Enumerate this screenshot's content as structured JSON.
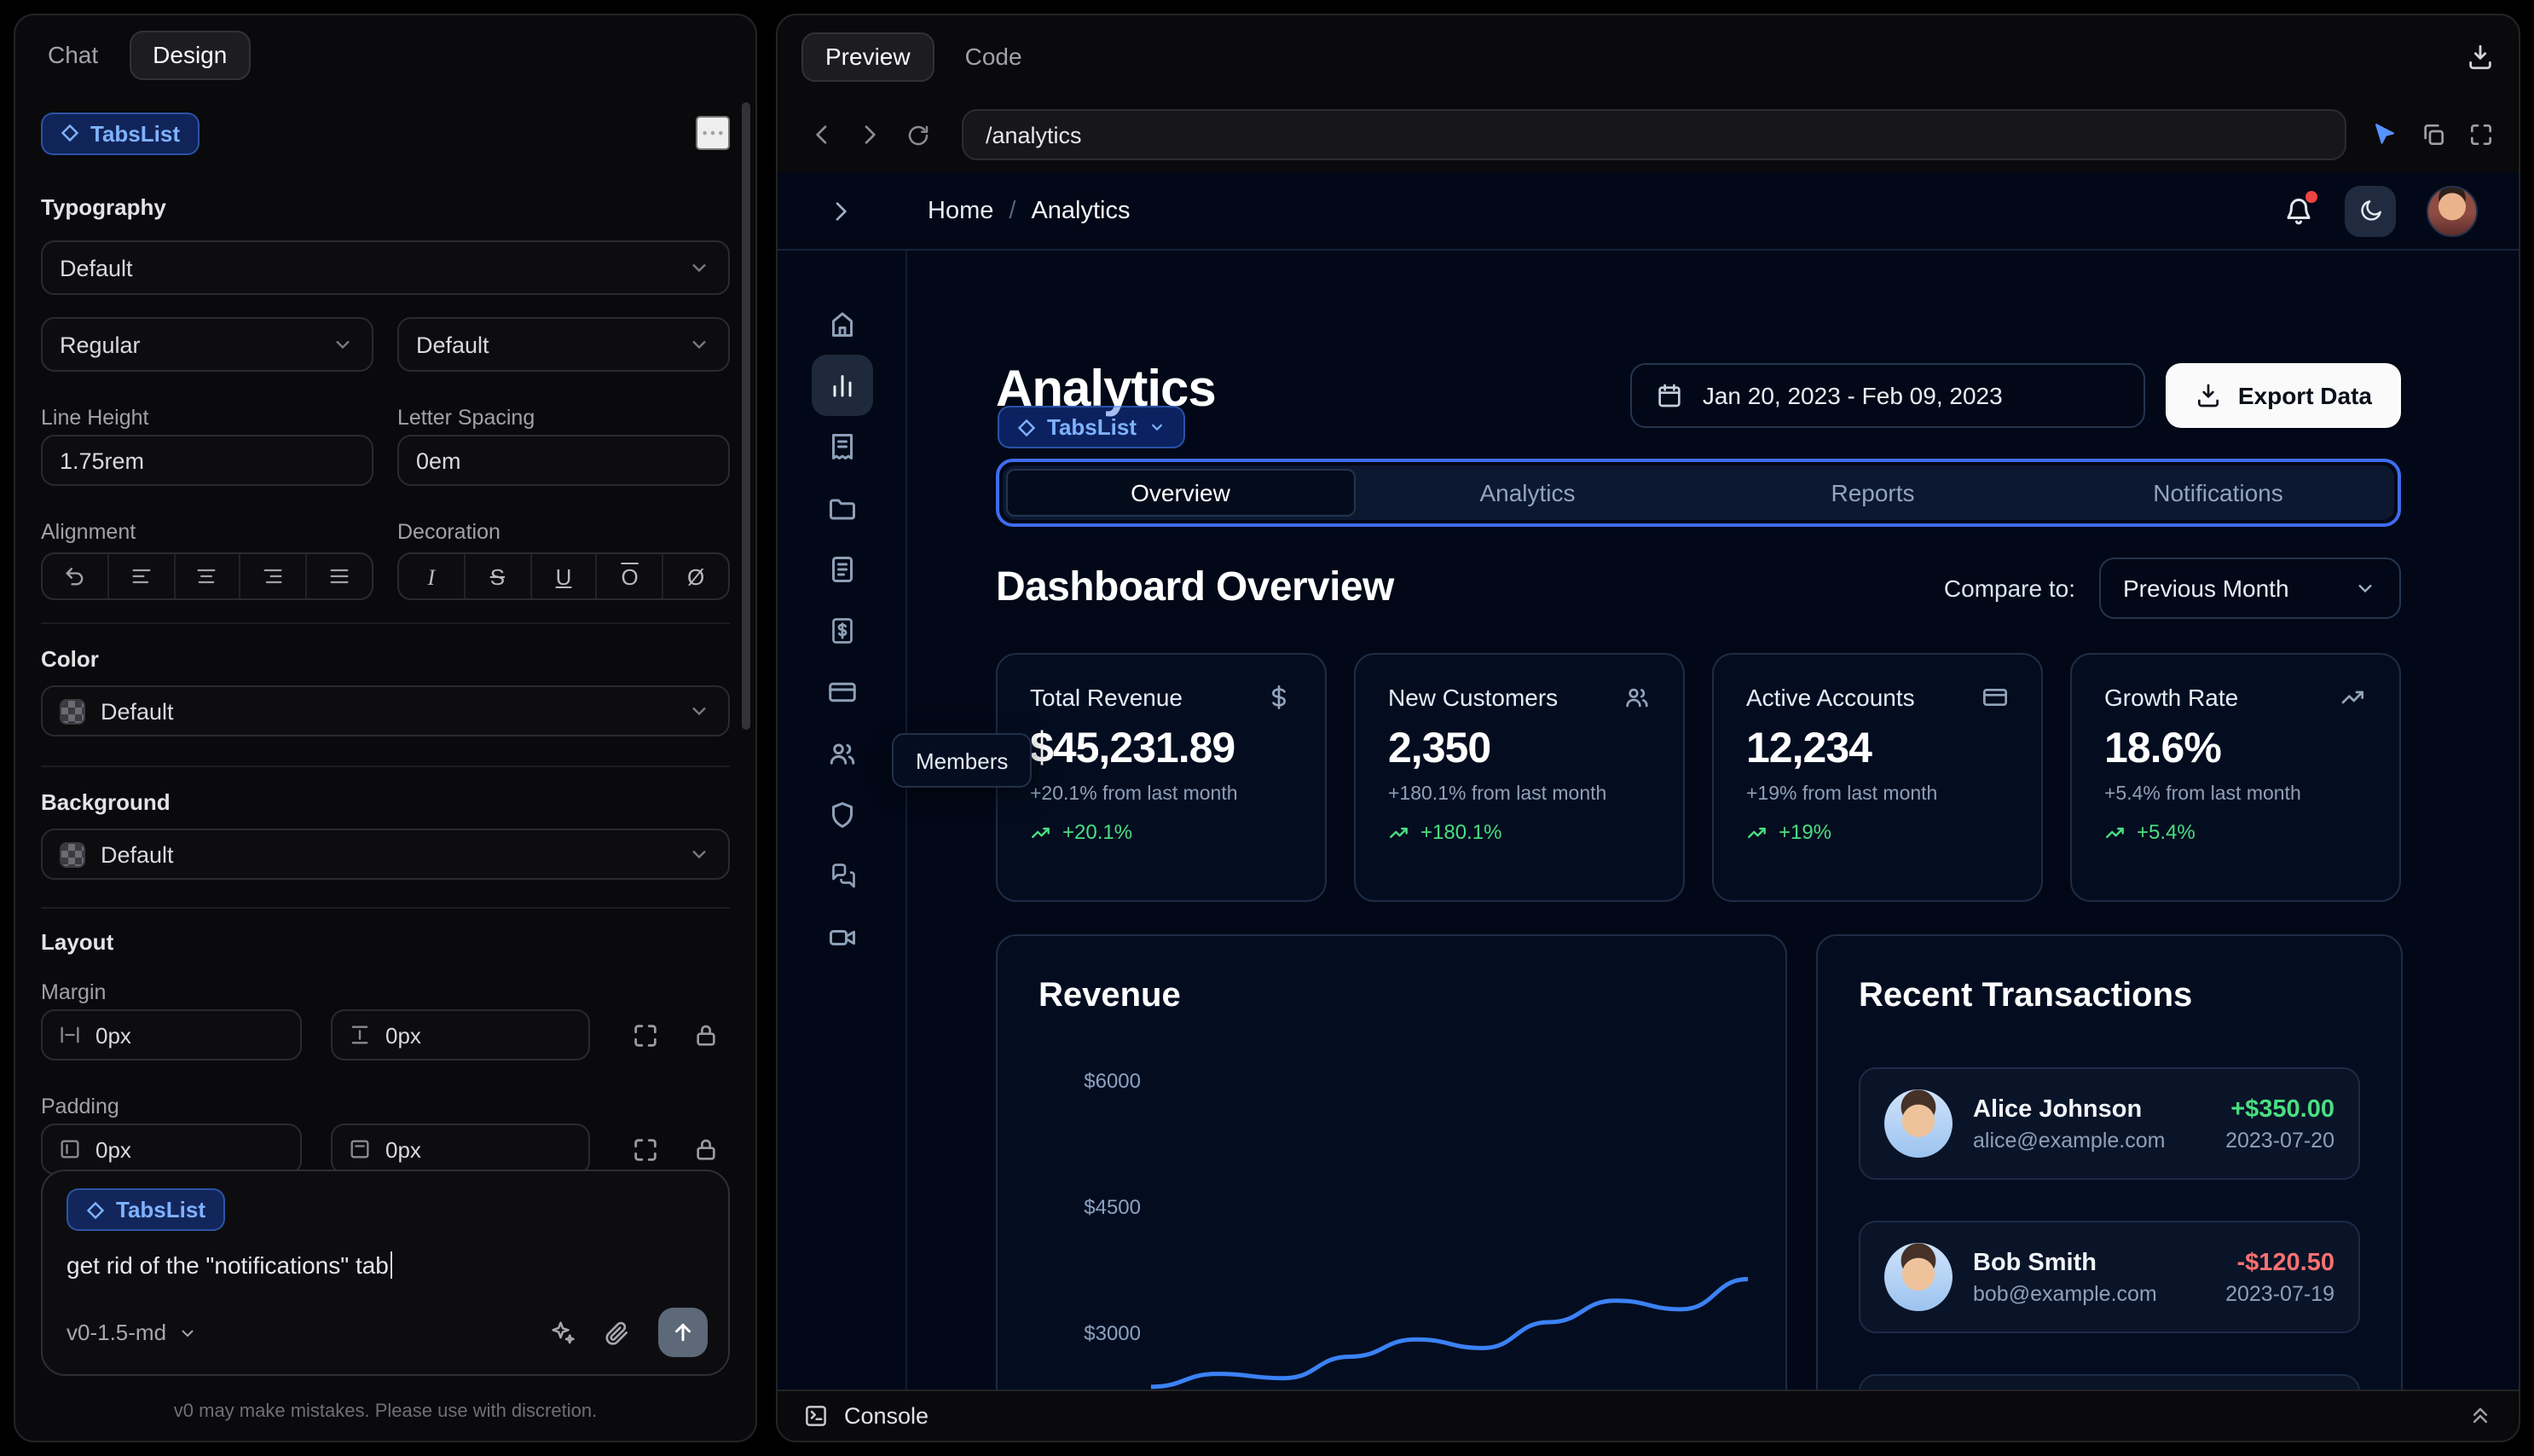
{
  "app": {
    "accent_blue": "#3b82f6",
    "positive_green": "#4ade80",
    "negative_red": "#f87171",
    "background": "#000000"
  },
  "left_panel": {
    "tabs": [
      {
        "label": "Chat",
        "active": false
      },
      {
        "label": "Design",
        "active": true
      }
    ],
    "selection_chip": "TabsList",
    "typography": {
      "section_label": "Typography",
      "font_select": "Default",
      "weight_select": "Regular",
      "size_select": "Default",
      "line_height_label": "Line Height",
      "line_height_value": "1.75rem",
      "letter_spacing_label": "Letter Spacing",
      "letter_spacing_value": "0em",
      "alignment_label": "Alignment",
      "alignment_options": [
        "reset",
        "align-left",
        "align-center",
        "align-right",
        "align-justify"
      ],
      "decoration_label": "Decoration",
      "decoration_options": [
        {
          "name": "italic",
          "glyph": "I"
        },
        {
          "name": "strikethrough",
          "glyph": "S"
        },
        {
          "name": "underline",
          "glyph": "U"
        },
        {
          "name": "overline",
          "glyph": "O"
        },
        {
          "name": "none",
          "glyph": "Ø"
        }
      ]
    },
    "color": {
      "section_label": "Color",
      "value": "Default"
    },
    "background": {
      "section_label": "Background",
      "value": "Default"
    },
    "layout": {
      "section_label": "Layout",
      "margin_label": "Margin",
      "margin_x_value": "0px",
      "margin_y_value": "0px",
      "padding_label": "Padding",
      "padding_x_value": "0px",
      "padding_y_value": "0px"
    },
    "composer": {
      "chip": "TabsList",
      "prompt_text": "get rid of the \"notifications\" tab",
      "model_label": "v0-1.5-md"
    },
    "disclaimer": "v0 may make mistakes. Please use with discretion."
  },
  "preview_panel": {
    "mode_tabs": [
      {
        "label": "Preview",
        "active": true
      },
      {
        "label": "Code",
        "active": false
      }
    ],
    "url": "/analytics"
  },
  "dashboard": {
    "breadcrumb": {
      "home": "Home",
      "separator": "/",
      "current": "Analytics"
    },
    "sidebar_icons": [
      {
        "name": "home",
        "active": false
      },
      {
        "name": "bar-chart",
        "active": true
      },
      {
        "name": "receipt",
        "active": false
      },
      {
        "name": "folder",
        "active": false
      },
      {
        "name": "notebook",
        "active": false
      },
      {
        "name": "invoice-dollar",
        "active": false
      },
      {
        "name": "credit-card",
        "active": false
      },
      {
        "name": "users",
        "active": false
      },
      {
        "name": "shield",
        "active": false
      },
      {
        "name": "messages",
        "active": false
      },
      {
        "name": "video",
        "active": false
      }
    ],
    "sidebar_tooltip": "Members",
    "page_title": "Analytics",
    "selection_chip": "TabsList",
    "date_range": "Jan 20, 2023 - Feb 09, 2023",
    "export_button": "Export Data",
    "tabs": [
      {
        "label": "Overview",
        "active": true
      },
      {
        "label": "Analytics",
        "active": false
      },
      {
        "label": "Reports",
        "active": false
      },
      {
        "label": "Notifications",
        "active": false
      }
    ],
    "section_title": "Dashboard Overview",
    "compare_label": "Compare to:",
    "compare_value": "Previous Month",
    "stats": [
      {
        "title": "Total Revenue",
        "icon": "dollar-sign",
        "value": "$45,231.89",
        "change": "+20.1% from last month",
        "trend": "+20.1%"
      },
      {
        "title": "New Customers",
        "icon": "users",
        "value": "2,350",
        "change": "+180.1% from last month",
        "trend": "+180.1%"
      },
      {
        "title": "Active Accounts",
        "icon": "credit-card",
        "value": "12,234",
        "change": "+19% from last month",
        "trend": "+19%"
      },
      {
        "title": "Growth Rate",
        "icon": "trending-up",
        "value": "18.6%",
        "change": "+5.4% from last month",
        "trend": "+5.4%"
      }
    ],
    "revenue_card": {
      "title": "Revenue"
    },
    "transactions_card": {
      "title": "Recent Transactions",
      "items": [
        {
          "name": "Alice Johnson",
          "email": "alice@example.com",
          "amount": "+$350.00",
          "positive": true,
          "date": "2023-07-20"
        },
        {
          "name": "Bob Smith",
          "email": "bob@example.com",
          "amount": "-$120.50",
          "positive": false,
          "date": "2023-07-19"
        }
      ]
    },
    "console_label": "Console"
  },
  "chart_data": {
    "type": "line",
    "title": "Revenue",
    "series": [
      {
        "name": "Revenue",
        "values": [
          2450,
          2600,
          2550,
          2800,
          3000,
          2900,
          3200,
          3450,
          3350,
          3700
        ]
      }
    ],
    "yticks": [
      "$6000",
      "$4500",
      "$3000"
    ],
    "ylim": [
      2300,
      6000
    ],
    "x_labels_visible": false,
    "grid": false,
    "legend": false,
    "line_color": "#3b82f6",
    "note": "lower portion of chart clipped by viewport; values estimated from visible line"
  }
}
